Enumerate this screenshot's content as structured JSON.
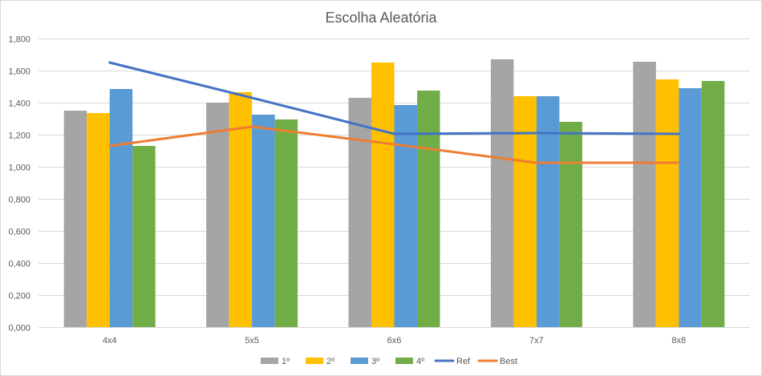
{
  "chart_data": {
    "type": "bar",
    "title": "Escolha Aleatória",
    "xlabel": "",
    "ylabel": "",
    "categories": [
      "4x4",
      "5x5",
      "6x6",
      "7x7",
      "8x8"
    ],
    "ylim": [
      0,
      1.8
    ],
    "ytick_values": [
      0,
      0.2,
      0.4,
      0.6,
      0.8,
      1.0,
      1.2,
      1.4,
      1.6,
      1.8
    ],
    "ytick_labels": [
      "0,000",
      "0,200",
      "0,400",
      "0,600",
      "0,800",
      "1,000",
      "1,200",
      "1,400",
      "1,600",
      "1,800"
    ],
    "grid": true,
    "legend_position": "bottom",
    "series": [
      {
        "name": "1º",
        "kind": "bar",
        "color": "#a5a5a5",
        "values": [
          1.35,
          1.4,
          1.43,
          1.67,
          1.655
        ]
      },
      {
        "name": "2º",
        "kind": "bar",
        "color": "#ffc000",
        "values": [
          1.335,
          1.465,
          1.65,
          1.44,
          1.545
        ]
      },
      {
        "name": "3º",
        "kind": "bar",
        "color": "#5b9bd5",
        "values": [
          1.485,
          1.325,
          1.385,
          1.44,
          1.49
        ]
      },
      {
        "name": "4º",
        "kind": "bar",
        "color": "#70ad47",
        "values": [
          1.13,
          1.295,
          1.475,
          1.28,
          1.535
        ]
      },
      {
        "name": "Ref",
        "kind": "line",
        "color": "#4472c4",
        "values": [
          1.65,
          1.43,
          1.205,
          1.21,
          1.205
        ]
      },
      {
        "name": "Best",
        "kind": "line",
        "color": "#ed7d31",
        "values": [
          1.13,
          1.25,
          1.14,
          1.025,
          1.025
        ]
      }
    ]
  }
}
